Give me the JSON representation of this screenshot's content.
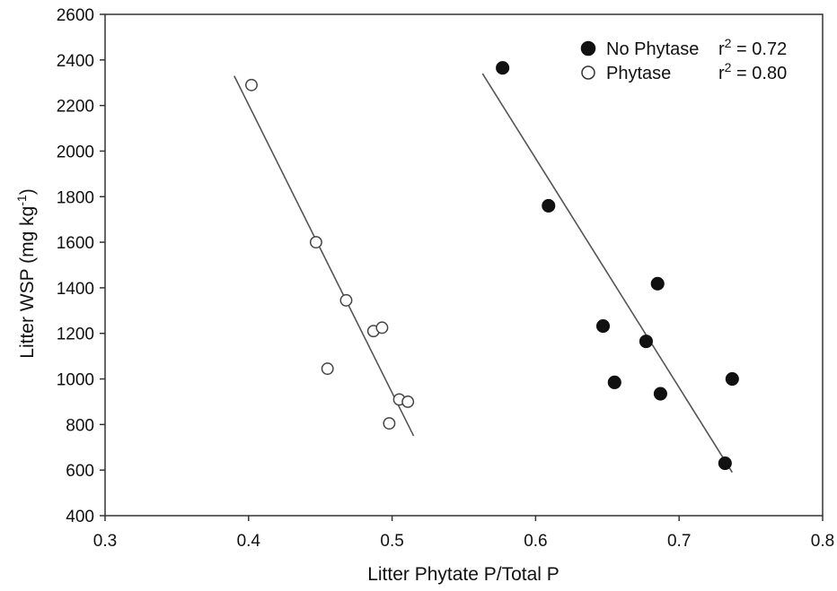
{
  "chart_data": {
    "type": "scatter",
    "xlabel": "Litter Phytate P/Total P",
    "ylabel_main": "Litter WSP (mg kg",
    "ylabel_sup": "-1",
    "ylabel_end": ")",
    "xlim": [
      0.3,
      0.8
    ],
    "ylim": [
      400,
      2600
    ],
    "x_ticks": [
      "0.3",
      "0.4",
      "0.5",
      "0.6",
      "0.7",
      "0.8"
    ],
    "y_ticks": [
      "400",
      "600",
      "800",
      "1000",
      "1200",
      "1400",
      "1600",
      "1800",
      "2000",
      "2200",
      "2400",
      "2600"
    ],
    "grid": false,
    "legend_position": "top-right",
    "series": [
      {
        "name": "No Phytase",
        "marker": "filled-circle",
        "r2_prefix": "r",
        "r2_sup": "2",
        "r2_value": " = 0.72",
        "points": [
          {
            "x": 0.577,
            "y": 2365
          },
          {
            "x": 0.609,
            "y": 1760
          },
          {
            "x": 0.685,
            "y": 1418
          },
          {
            "x": 0.647,
            "y": 1232
          },
          {
            "x": 0.677,
            "y": 1165
          },
          {
            "x": 0.655,
            "y": 985
          },
          {
            "x": 0.737,
            "y": 1000
          },
          {
            "x": 0.687,
            "y": 935
          },
          {
            "x": 0.732,
            "y": 630
          }
        ],
        "trendline": {
          "x0": 0.563,
          "y0": 2340,
          "x1": 0.737,
          "y1": 590
        }
      },
      {
        "name": "Phytase",
        "marker": "open-circle",
        "r2_prefix": "r",
        "r2_sup": "2",
        "r2_value": " = 0.80",
        "points": [
          {
            "x": 0.402,
            "y": 2290
          },
          {
            "x": 0.447,
            "y": 1600
          },
          {
            "x": 0.468,
            "y": 1345
          },
          {
            "x": 0.487,
            "y": 1210
          },
          {
            "x": 0.493,
            "y": 1225
          },
          {
            "x": 0.455,
            "y": 1045
          },
          {
            "x": 0.505,
            "y": 910
          },
          {
            "x": 0.511,
            "y": 900
          },
          {
            "x": 0.498,
            "y": 805
          }
        ],
        "trendline": {
          "x0": 0.39,
          "y0": 2330,
          "x1": 0.515,
          "y1": 750
        }
      }
    ]
  }
}
